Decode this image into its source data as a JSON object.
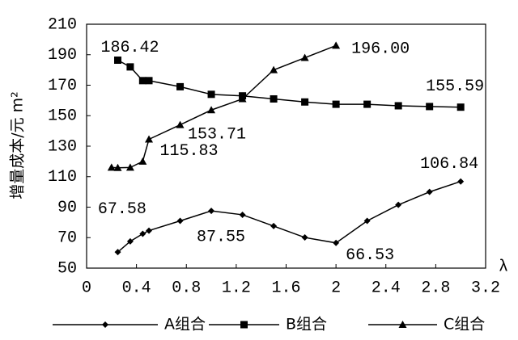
{
  "chart_data": {
    "type": "line",
    "y_label": "增量成本/元 m²",
    "x_label": "λ",
    "xlim": [
      0,
      3.2
    ],
    "xticks": [
      0,
      0.4,
      0.8,
      1.2,
      1.6,
      2,
      2.4,
      2.8,
      3.2
    ],
    "ylim": [
      50,
      210
    ],
    "yticks": [
      50,
      70,
      90,
      110,
      130,
      150,
      170,
      190,
      210
    ],
    "grid": false,
    "legend": "bottom",
    "series": [
      {
        "name": "A组合",
        "color": "#000000",
        "marker": "diamond",
        "x": [
          0.25,
          0.35,
          0.45,
          0.5,
          0.75,
          1.0,
          1.25,
          1.5,
          1.75,
          2.0,
          2.25,
          2.5,
          2.75,
          3.0
        ],
        "values": [
          60.5,
          67.58,
          72.5,
          74.6,
          81,
          87.55,
          85,
          77.6,
          70.1,
          66.53,
          81,
          91.5,
          100,
          106.84
        ],
        "value_labels": [
          null,
          "67.58",
          null,
          null,
          null,
          "87.55",
          null,
          null,
          null,
          "66.53",
          null,
          null,
          null,
          "106.84"
        ]
      },
      {
        "name": "B组合",
        "color": "#000000",
        "marker": "square",
        "x": [
          0.25,
          0.35,
          0.45,
          0.5,
          0.75,
          1.0,
          1.25,
          1.5,
          1.75,
          2.0,
          2.25,
          2.5,
          2.75,
          3.0
        ],
        "values": [
          186.42,
          182,
          173,
          173,
          169,
          164,
          163,
          161,
          159,
          157.5,
          157.5,
          156.5,
          156,
          155.59
        ],
        "value_labels": [
          "186.42",
          null,
          null,
          null,
          null,
          null,
          null,
          null,
          null,
          null,
          null,
          null,
          null,
          "155.59"
        ]
      },
      {
        "name": "C组合",
        "color": "#000000",
        "marker": "triangle",
        "x": [
          0.2,
          0.25,
          0.35,
          0.45,
          0.5,
          0.75,
          1.0,
          1.25,
          1.5,
          1.75,
          2.0
        ],
        "values": [
          116,
          115.83,
          116,
          120,
          134.5,
          144,
          153.71,
          161,
          180,
          188,
          196
        ],
        "value_labels": [
          null,
          "115.83",
          null,
          null,
          null,
          null,
          "153.71",
          null,
          null,
          null,
          "196.00"
        ]
      }
    ]
  }
}
